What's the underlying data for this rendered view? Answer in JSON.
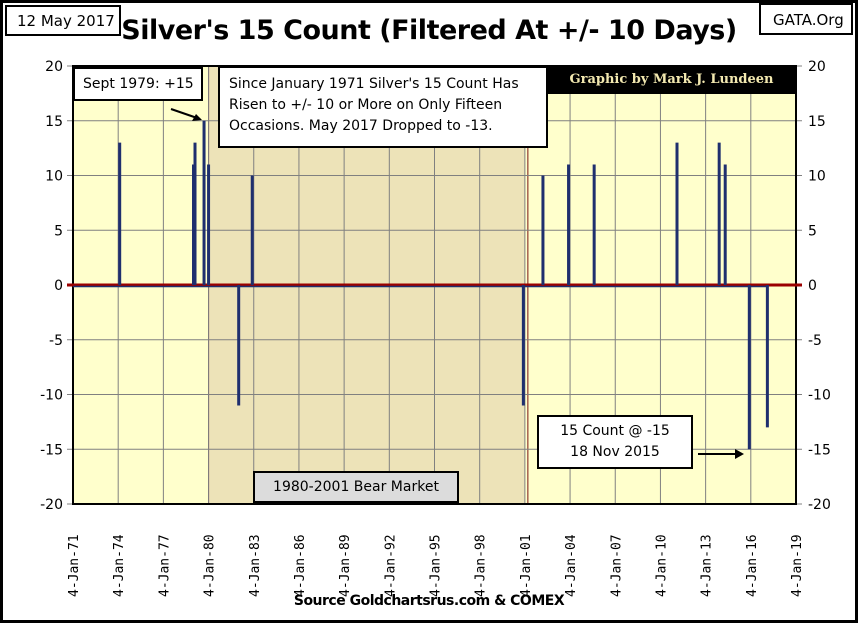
{
  "header": {
    "date": "12 May 2017",
    "site": "GATA.Org"
  },
  "chart_data": {
    "type": "line",
    "title": "Silver's 15 Count (Filtered At +/- 10 Days)",
    "credit": "Graphic by Mark J. Lundeen",
    "source": "Source Goldchartsrus.com & COMEX",
    "xlim": [
      1971,
      2019
    ],
    "ylim": [
      -20,
      20
    ],
    "y_ticks": [
      20,
      15,
      10,
      5,
      0,
      -5,
      -10,
      -15,
      -20
    ],
    "x_tick_labels": [
      "4-Jan-71",
      "4-Jan-74",
      "4-Jan-77",
      "4-Jan-80",
      "4-Jan-83",
      "4-Jan-86",
      "4-Jan-89",
      "4-Jan-92",
      "4-Jan-95",
      "4-Jan-98",
      "4-Jan-01",
      "4-Jan-04",
      "4-Jan-07",
      "4-Jan-10",
      "4-Jan-13",
      "4-Jan-16",
      "4-Jan-19"
    ],
    "grid": true,
    "baseline_value": 0,
    "colors": {
      "series": "#1f2f6e",
      "zero_line": "#9b0000",
      "plot_bg": "#ffffcc",
      "bear_shade": "#ede3b8"
    },
    "shaded_region": {
      "from": 1980.0,
      "to": 2001.0,
      "label": "1980-2001 Bear Market"
    },
    "spikes": [
      {
        "year": 1974.1,
        "value": 13
      },
      {
        "year": 1979.0,
        "value": 11
      },
      {
        "year": 1979.1,
        "value": 13
      },
      {
        "year": 1979.7,
        "value": 15
      },
      {
        "year": 1980.0,
        "value": 11
      },
      {
        "year": 1982.0,
        "value": -11
      },
      {
        "year": 1982.9,
        "value": 10
      },
      {
        "year": 2000.9,
        "value": -11
      },
      {
        "year": 2002.2,
        "value": 10
      },
      {
        "year": 2003.9,
        "value": 11
      },
      {
        "year": 2005.6,
        "value": 11
      },
      {
        "year": 2011.1,
        "value": 13
      },
      {
        "year": 2013.9,
        "value": 13
      },
      {
        "year": 2014.3,
        "value": 11
      },
      {
        "year": 2015.9,
        "value": -15
      },
      {
        "year": 2017.1,
        "value": -13
      }
    ],
    "annotations": {
      "sept": "Sept 1979: +15",
      "info": [
        "Since January 1971 Silver's 15 Count Has",
        "Risen to +/- 10 or More on Only Fifteen",
        "Occasions.   May 2017 Dropped to -13."
      ],
      "nov_line1": "15 Count @ -15",
      "nov_line2": "18 Nov 2015"
    }
  }
}
